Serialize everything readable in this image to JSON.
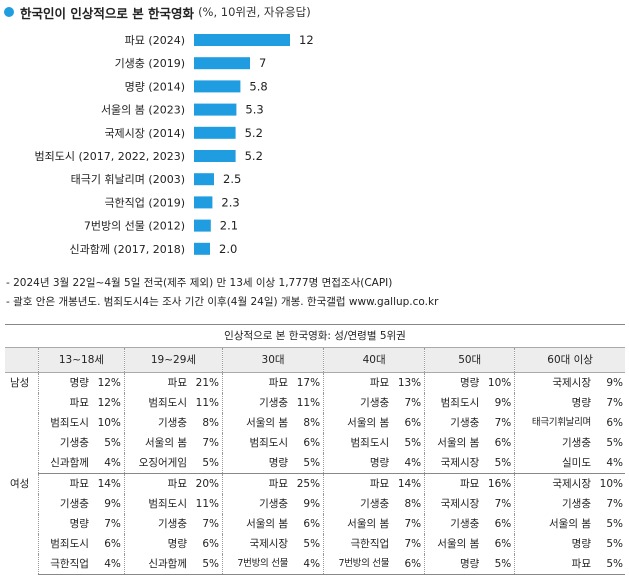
{
  "header": {
    "title": "한국인이 인상적으로 본 한국영화",
    "subtitle": "(%, 10위권, 자유응답)"
  },
  "chart_data": {
    "type": "bar",
    "orientation": "horizontal",
    "title": "한국인이 인상적으로 본 한국영화",
    "subtitle": "(%, 10위권, 자유응답)",
    "categories": [
      "파묘 (2024)",
      "기생충 (2019)",
      "명량 (2014)",
      "서울의 봄 (2023)",
      "국제시장 (2014)",
      "범죄도시 (2017, 2022, 2023)",
      "태극기 휘날리며 (2003)",
      "극한직업 (2019)",
      "7번방의 선물 (2012)",
      "신과함께 (2017, 2018)"
    ],
    "values": [
      12,
      7,
      5.8,
      5.3,
      5.2,
      5.2,
      2.5,
      2.3,
      2.1,
      2.0
    ],
    "value_labels": [
      "12",
      "7",
      "5.8",
      "5.3",
      "5.2",
      "5.2",
      "2.5",
      "2.3",
      "2.1",
      "2.0"
    ],
    "xlim": [
      0,
      12
    ],
    "grid": false,
    "bar_color": "#1f9de0"
  },
  "notes": [
    "- 2024년 3월 22일~4월 5일 전국(제주 제외) 만 13세 이상 1,777명 면접조사(CAPI)",
    "- 괄호 안은 개봉년도. 범죄도시4는 조사 기간 이후(4월 24일) 개봉. 한국갤럽 www.gallup.co.kr"
  ],
  "table": {
    "caption": "인상적으로 본 한국영화: 성/연령별 5위권",
    "age_groups": [
      "13~18세",
      "19~29세",
      "30대",
      "40대",
      "50대",
      "60대 이상"
    ],
    "groups": [
      {
        "gender": "남성",
        "rows": [
          [
            [
              "명량",
              "12%"
            ],
            [
              "파묘",
              "21%"
            ],
            [
              "파묘",
              "17%"
            ],
            [
              "파묘",
              "13%"
            ],
            [
              "명량",
              "10%"
            ],
            [
              "국제시장",
              "9%"
            ]
          ],
          [
            [
              "파묘",
              "12%"
            ],
            [
              "범죄도시",
              "11%"
            ],
            [
              "기생충",
              "11%"
            ],
            [
              "기생충",
              "7%"
            ],
            [
              "범죄도시",
              "9%"
            ],
            [
              "명량",
              "7%"
            ]
          ],
          [
            [
              "범죄도시",
              "10%"
            ],
            [
              "기생충",
              "8%"
            ],
            [
              "서울의 봄",
              "8%"
            ],
            [
              "서울의 봄",
              "6%"
            ],
            [
              "기생충",
              "7%"
            ],
            [
              "태극기휘날리며",
              "6%"
            ]
          ],
          [
            [
              "기생충",
              "5%"
            ],
            [
              "서울의 봄",
              "7%"
            ],
            [
              "범죄도시",
              "6%"
            ],
            [
              "범죄도시",
              "5%"
            ],
            [
              "서울의 봄",
              "6%"
            ],
            [
              "기생충",
              "5%"
            ]
          ],
          [
            [
              "신과함께",
              "4%"
            ],
            [
              "오징어게임",
              "5%"
            ],
            [
              "명량",
              "5%"
            ],
            [
              "명량",
              "4%"
            ],
            [
              "국제시장",
              "5%"
            ],
            [
              "실미도",
              "4%"
            ]
          ]
        ]
      },
      {
        "gender": "여성",
        "rows": [
          [
            [
              "파묘",
              "14%"
            ],
            [
              "파묘",
              "20%"
            ],
            [
              "파묘",
              "25%"
            ],
            [
              "파묘",
              "14%"
            ],
            [
              "파묘",
              "16%"
            ],
            [
              "국제시장",
              "10%"
            ]
          ],
          [
            [
              "기생충",
              "9%"
            ],
            [
              "범죄도시",
              "11%"
            ],
            [
              "기생충",
              "9%"
            ],
            [
              "기생충",
              "8%"
            ],
            [
              "국제시장",
              "7%"
            ],
            [
              "기생충",
              "7%"
            ]
          ],
          [
            [
              "명량",
              "7%"
            ],
            [
              "기생충",
              "7%"
            ],
            [
              "서울의 봄",
              "6%"
            ],
            [
              "서울의 봄",
              "7%"
            ],
            [
              "기생충",
              "6%"
            ],
            [
              "서울의 봄",
              "5%"
            ]
          ],
          [
            [
              "범죄도시",
              "6%"
            ],
            [
              "명량",
              "6%"
            ],
            [
              "국제시장",
              "5%"
            ],
            [
              "극한직업",
              "7%"
            ],
            [
              "서울의 봄",
              "6%"
            ],
            [
              "명량",
              "5%"
            ]
          ],
          [
            [
              "극한직업",
              "4%"
            ],
            [
              "신과함께",
              "5%"
            ],
            [
              "7번방의 선물",
              "4%"
            ],
            [
              "7번방의 선물",
              "6%"
            ],
            [
              "명량",
              "5%"
            ],
            [
              "파묘",
              "5%"
            ]
          ]
        ]
      }
    ]
  }
}
